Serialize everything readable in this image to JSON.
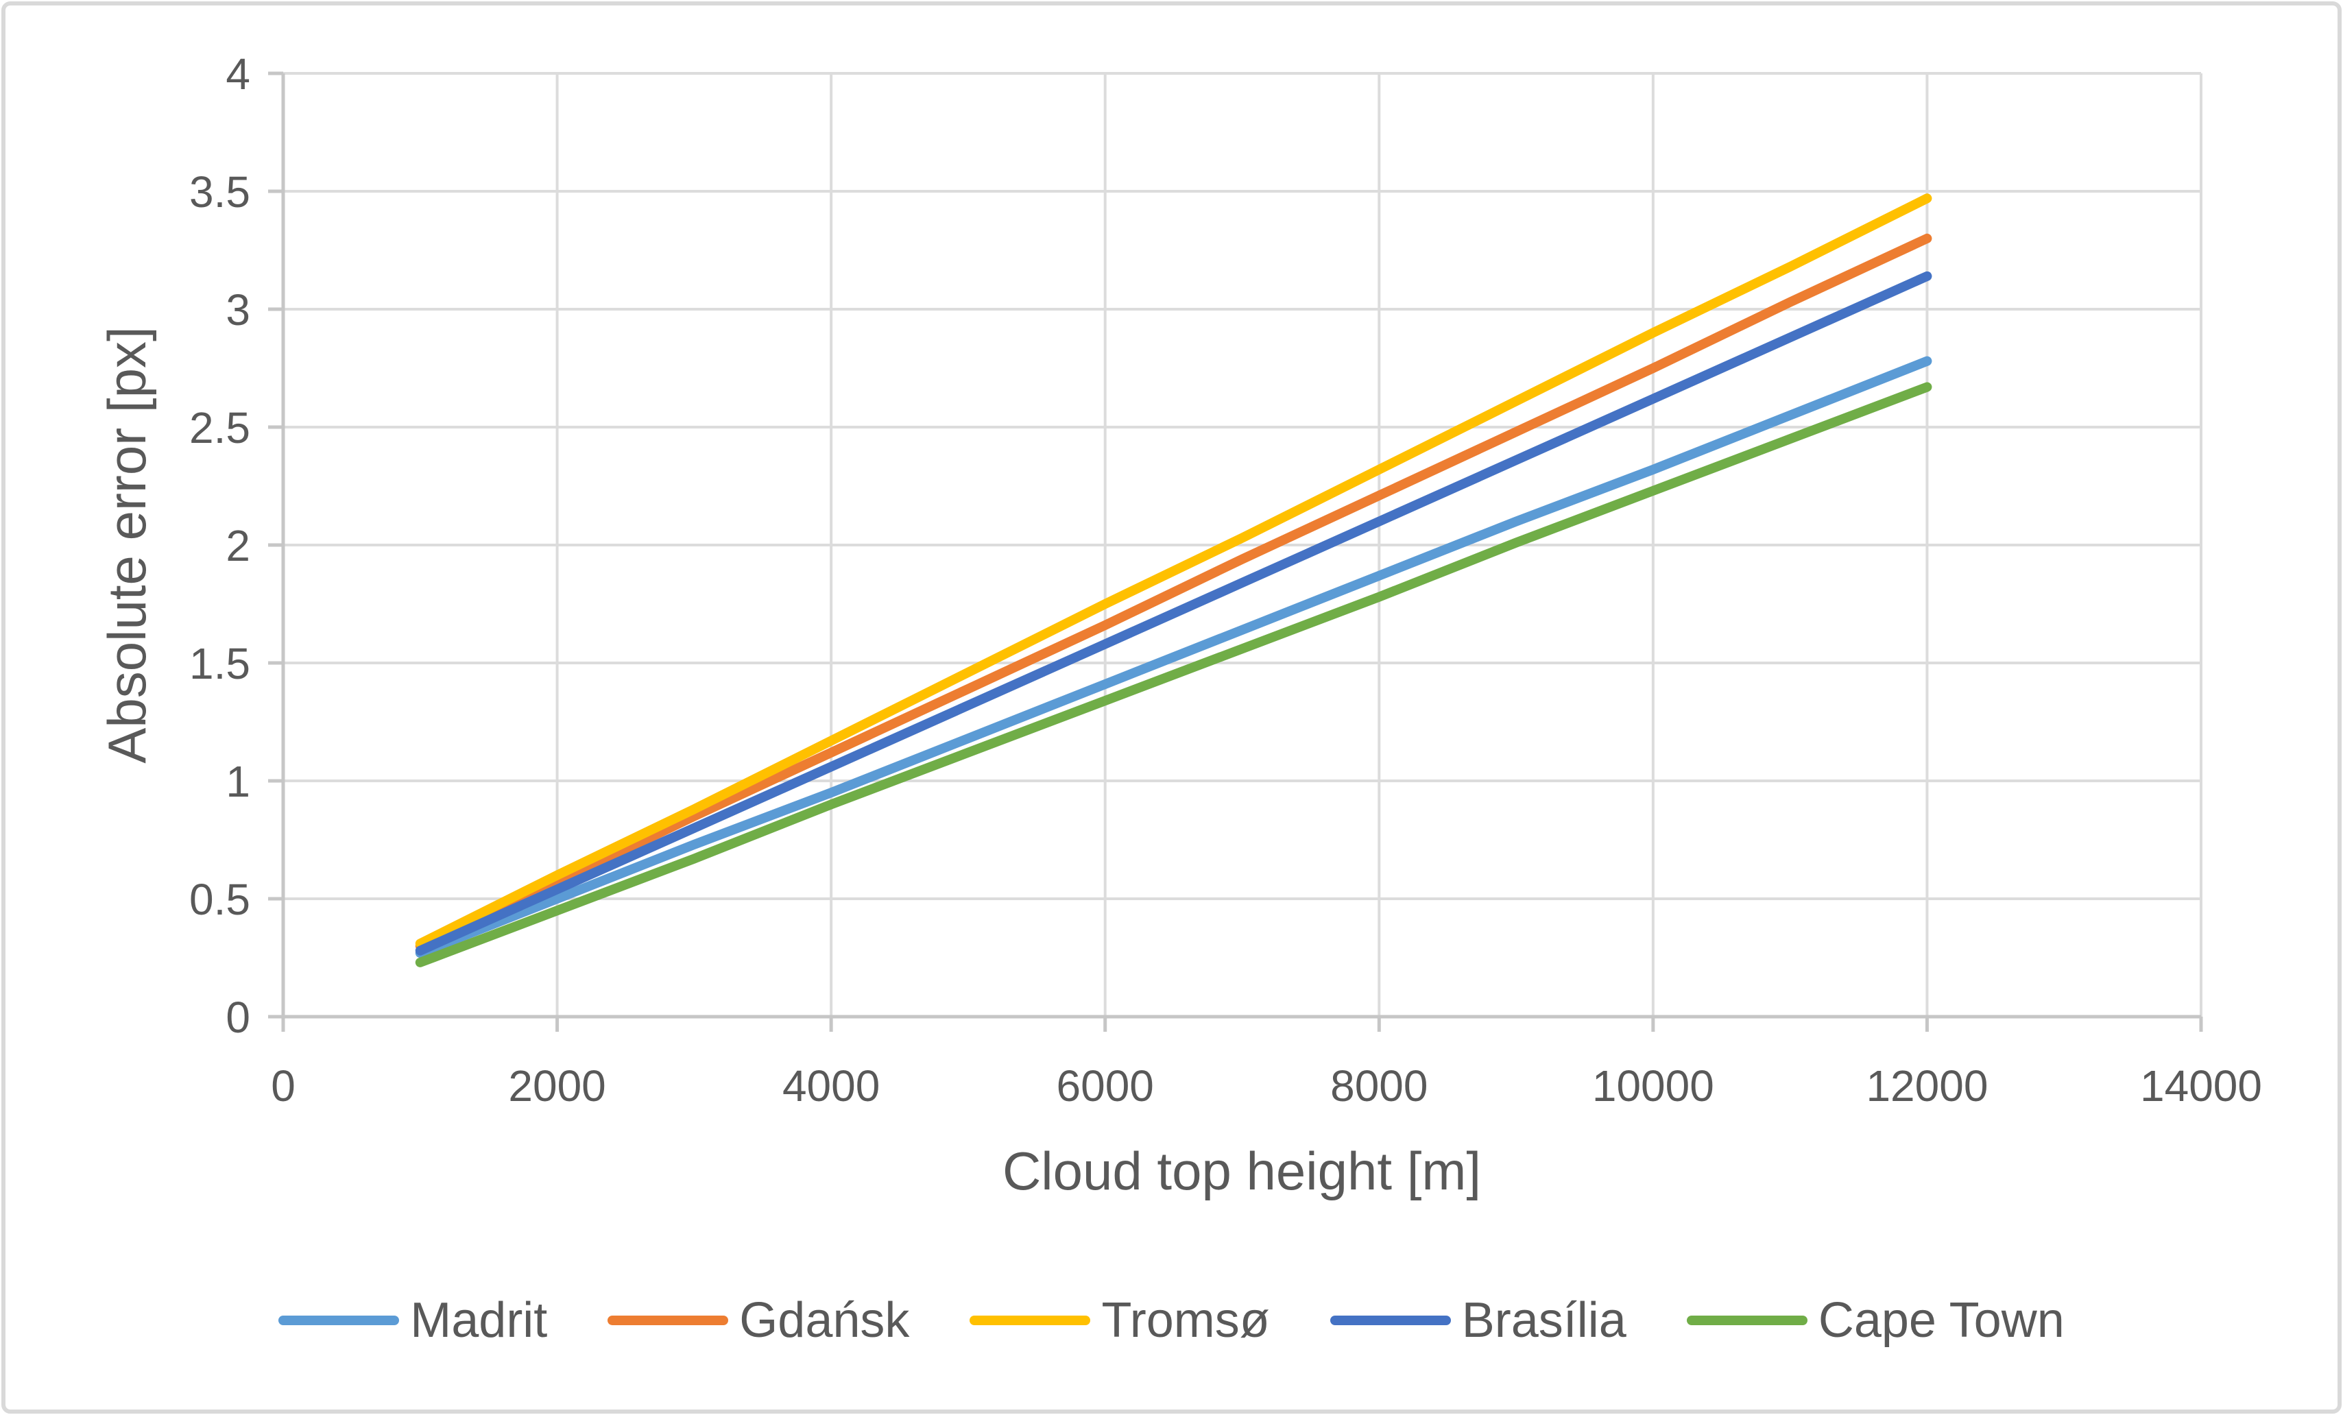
{
  "figure": {
    "background": "#FFFFFF",
    "border_color": "#D9D9D9",
    "grid_color": "#DCDCDC",
    "axis_color": "#C6C6C6",
    "text_color": "#595959"
  },
  "chart_data": {
    "type": "line",
    "title": "",
    "xlabel": "Cloud top height [m]",
    "ylabel": "Absolute error [px]",
    "xlim": [
      0,
      14000
    ],
    "ylim": [
      0,
      4
    ],
    "xticks": [
      0,
      2000,
      4000,
      6000,
      8000,
      10000,
      12000,
      14000
    ],
    "xtick_labels": [
      "0",
      "2000",
      "4000",
      "6000",
      "8000",
      "10000",
      "12000",
      "14000"
    ],
    "yticks": [
      0,
      0.5,
      1,
      1.5,
      2,
      2.5,
      3,
      3.5,
      4
    ],
    "ytick_labels": [
      "0",
      "0.5",
      "1",
      "1.5",
      "2",
      "2.5",
      "3",
      "3.5",
      "4"
    ],
    "grid": true,
    "legend_position": "bottom",
    "x": [
      1000,
      2000,
      3000,
      4000,
      5000,
      6000,
      7000,
      8000,
      9000,
      10000,
      11000,
      12000
    ],
    "series": [
      {
        "id": "madrit",
        "name": "Madrit",
        "color": "#5B9BD5",
        "values": [
          0.27,
          0.5,
          0.73,
          0.95,
          1.18,
          1.41,
          1.64,
          1.87,
          2.1,
          2.32,
          2.55,
          2.78
        ]
      },
      {
        "id": "gdansk",
        "name": "Gdańsk",
        "color": "#ED7D31",
        "values": [
          0.3,
          0.57,
          0.85,
          1.12,
          1.39,
          1.66,
          1.94,
          2.21,
          2.48,
          2.75,
          3.03,
          3.3
        ]
      },
      {
        "id": "tromso",
        "name": "Tromsø",
        "color": "#FFC000",
        "values": [
          0.31,
          0.6,
          0.88,
          1.17,
          1.46,
          1.75,
          2.03,
          2.32,
          2.61,
          2.9,
          3.18,
          3.47
        ]
      },
      {
        "id": "brasilia",
        "name": "Brasília",
        "color": "#4472C4",
        "values": [
          0.28,
          0.54,
          0.8,
          1.06,
          1.32,
          1.58,
          1.84,
          2.1,
          2.36,
          2.62,
          2.88,
          3.14
        ]
      },
      {
        "id": "cape-town",
        "name": "Cape Town",
        "color": "#70AD47",
        "values": [
          0.23,
          0.45,
          0.67,
          0.9,
          1.12,
          1.34,
          1.56,
          1.78,
          2.01,
          2.23,
          2.45,
          2.67
        ]
      }
    ]
  }
}
